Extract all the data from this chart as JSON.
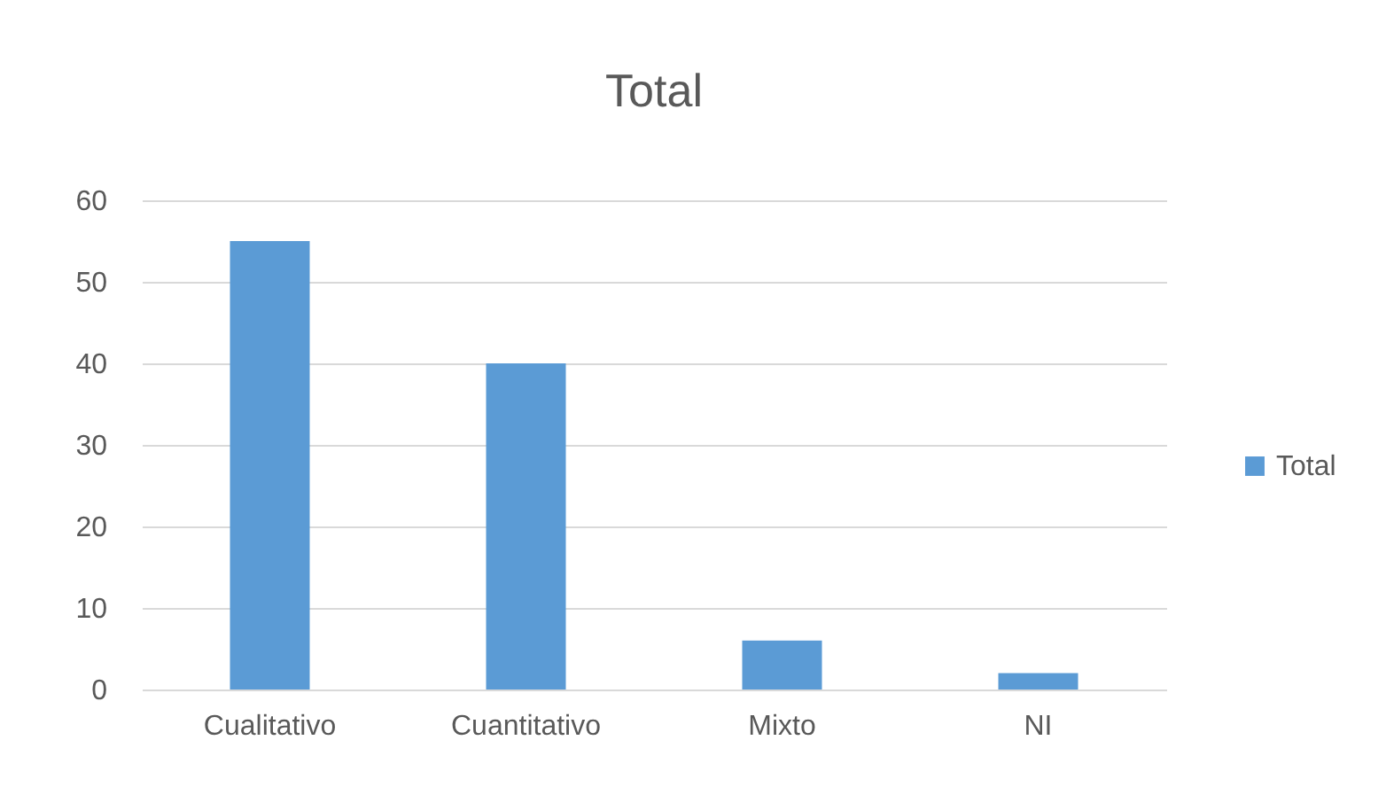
{
  "chart_data": {
    "type": "bar",
    "title": "Total",
    "categories": [
      "Cualitativo",
      "Cuantitativo",
      "Mixto",
      "NI"
    ],
    "series": [
      {
        "name": "Total",
        "color": "#5b9bd5",
        "values": [
          55,
          40,
          6,
          2
        ]
      }
    ],
    "ylim": [
      0,
      60
    ],
    "yticks": [
      0,
      10,
      20,
      30,
      40,
      50,
      60
    ],
    "grid": "y",
    "legend": "right"
  }
}
